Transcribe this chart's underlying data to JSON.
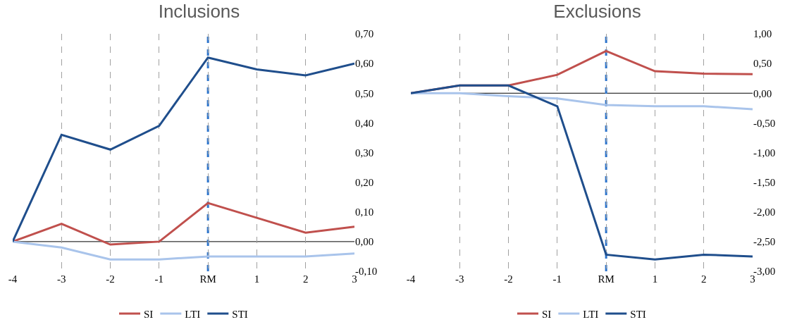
{
  "chart_data": [
    {
      "type": "line",
      "title": "Inclusions",
      "categories": [
        "-4",
        "-3",
        "-2",
        "-1",
        "RM",
        "1",
        "2",
        "3"
      ],
      "series": [
        {
          "name": "SI",
          "color": "#c0504d",
          "values": [
            0,
            0.06,
            -0.01,
            0,
            0.13,
            0.08,
            0.03,
            0.05
          ]
        },
        {
          "name": "LTI",
          "color": "#a9c4eb",
          "values": [
            0,
            -0.02,
            -0.06,
            -0.06,
            -0.05,
            -0.05,
            -0.05,
            -0.04
          ]
        },
        {
          "name": "STI",
          "color": "#1f4e8c",
          "values": [
            0,
            0.36,
            0.31,
            0.39,
            0.62,
            0.58,
            0.56,
            0.6
          ]
        }
      ],
      "ylim": [
        -0.1,
        0.7
      ],
      "yticks": [
        {
          "value": -0.1,
          "label": "-0,10"
        },
        {
          "value": 0,
          "label": "0,00"
        },
        {
          "value": 0.1,
          "label": "0,10"
        },
        {
          "value": 0.2,
          "label": "0,20"
        },
        {
          "value": 0.3,
          "label": "0,30"
        },
        {
          "value": 0.4,
          "label": "0,40"
        },
        {
          "value": 0.5,
          "label": "0,50"
        },
        {
          "value": 0.6,
          "label": "0,60"
        },
        {
          "value": 0.7,
          "label": "0,70"
        }
      ],
      "ref_lines": [
        {
          "axis": "y",
          "value": 0,
          "color": "#000000",
          "line_style": "solid"
        },
        {
          "axis": "x",
          "value": "RM",
          "color": "#2e75cc",
          "line_style": "dashed"
        }
      ],
      "grid": "x",
      "legend": "bottom",
      "marker": "none",
      "line_style": "solid"
    },
    {
      "type": "line",
      "title": "Exclusions",
      "categories": [
        "-4",
        "-3",
        "-2",
        "-1",
        "RM",
        "1",
        "2",
        "3"
      ],
      "series": [
        {
          "name": "SI",
          "color": "#c0504d",
          "values": [
            0,
            0.13,
            0.13,
            0.31,
            0.71,
            0.37,
            0.33,
            0.32
          ]
        },
        {
          "name": "LTI",
          "color": "#a9c4eb",
          "values": [
            0,
            0,
            -0.05,
            -0.09,
            -0.2,
            -0.22,
            -0.22,
            -0.27
          ]
        },
        {
          "name": "STI",
          "color": "#1f4e8c",
          "values": [
            0,
            0.13,
            0.13,
            -0.22,
            -2.72,
            -2.8,
            -2.72,
            -2.75
          ]
        }
      ],
      "ylim": [
        -3,
        1
      ],
      "yticks": [
        {
          "value": -3,
          "label": "-3,00"
        },
        {
          "value": -2.5,
          "label": "-2,50"
        },
        {
          "value": -2,
          "label": "-2,00"
        },
        {
          "value": -1.5,
          "label": "-1,50"
        },
        {
          "value": -1,
          "label": "-1,00"
        },
        {
          "value": -0.5,
          "label": "-0,50"
        },
        {
          "value": 0,
          "label": "0,00"
        },
        {
          "value": 0.5,
          "label": "0,50"
        },
        {
          "value": 1,
          "label": "1,00"
        }
      ],
      "ref_lines": [
        {
          "axis": "y",
          "value": 0,
          "color": "#000000",
          "line_style": "solid"
        },
        {
          "axis": "x",
          "value": "RM",
          "color": "#2e75cc",
          "line_style": "dashed"
        }
      ],
      "grid": "x",
      "legend": "bottom",
      "marker": "none",
      "line_style": "solid"
    }
  ]
}
